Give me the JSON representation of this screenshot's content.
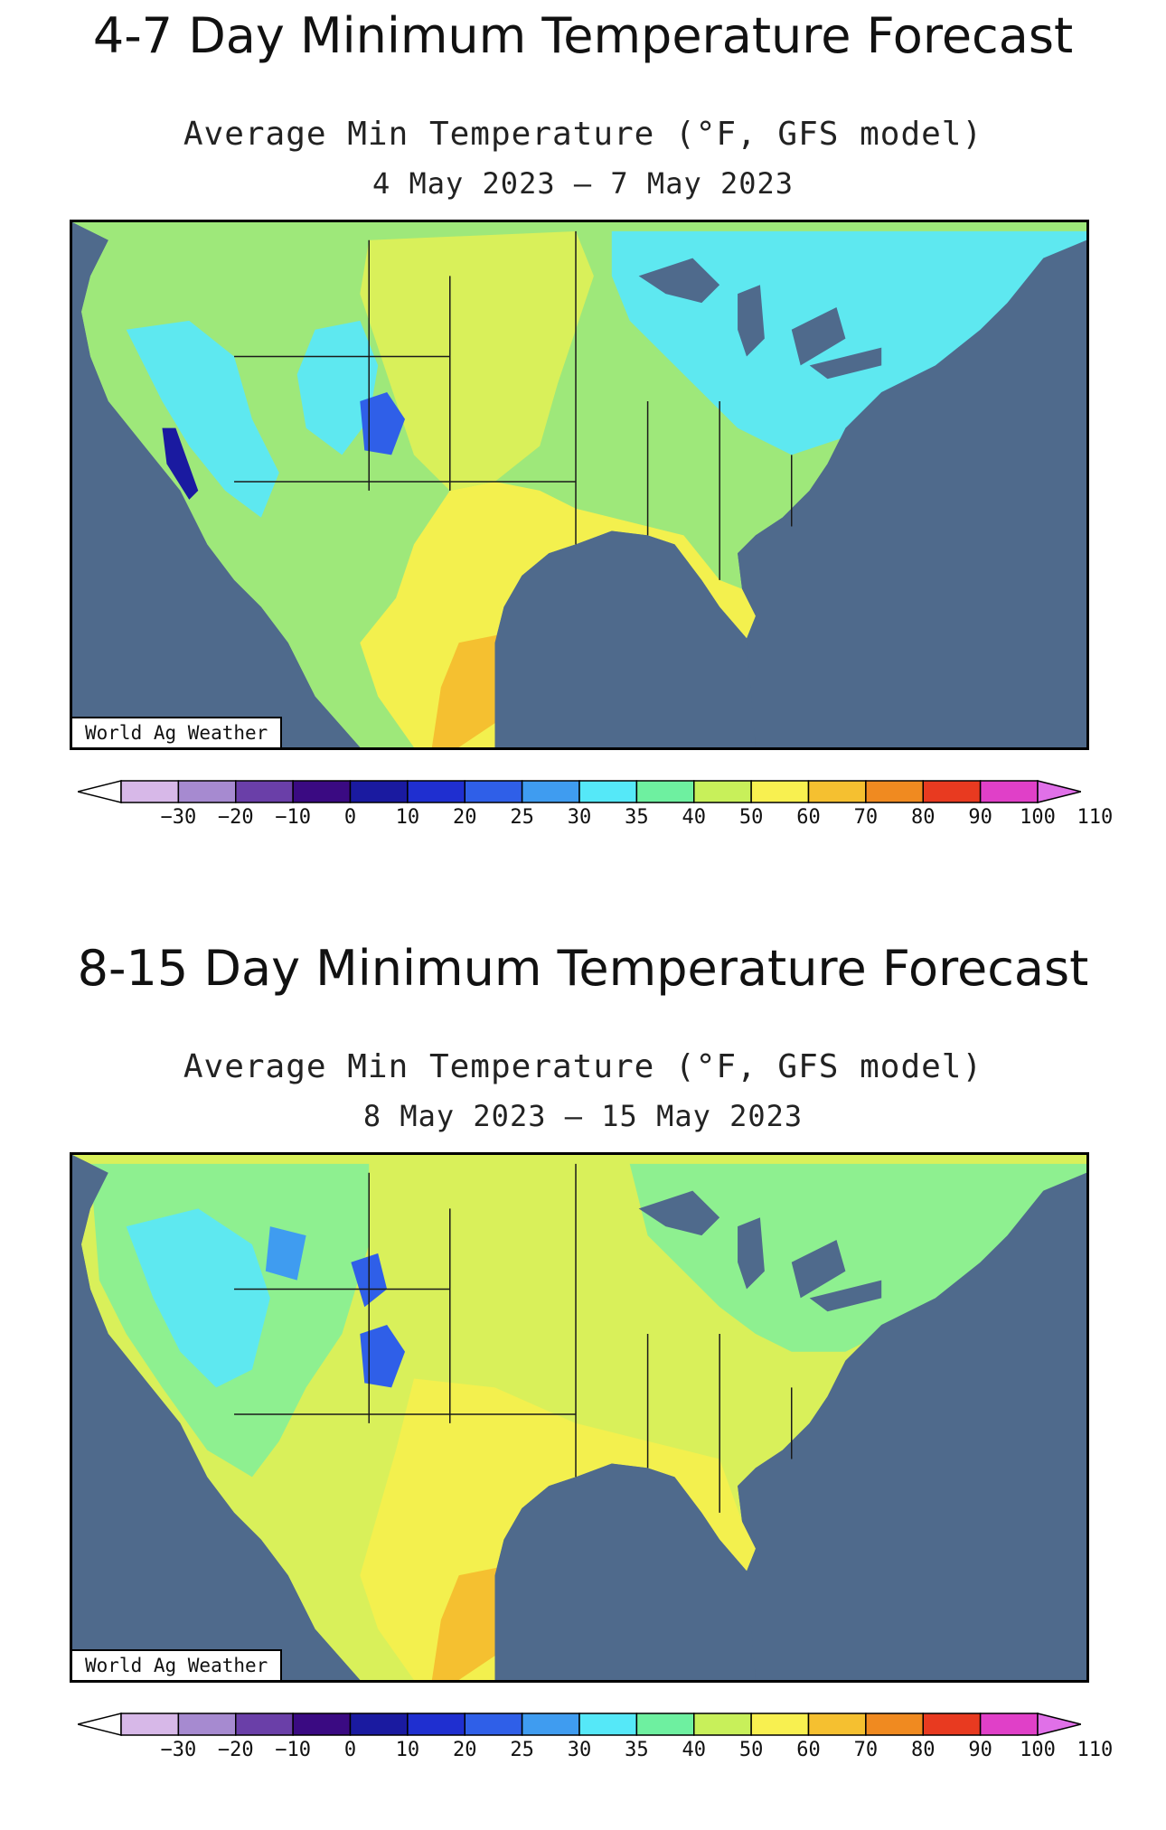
{
  "panels": [
    {
      "title": "4-7 Day Minimum Temperature Forecast",
      "subtitle": "Average Min Temperature (°F, GFS model)",
      "date_range": "4 May 2023 – 7 May 2023",
      "credit": "World Ag Weather"
    },
    {
      "title": "8-15 Day Minimum Temperature Forecast",
      "subtitle": "Average Min Temperature (°F, GFS model)",
      "date_range": "8 May 2023 – 15 May 2023",
      "credit": "World Ag Weather"
    }
  ],
  "colorbar": {
    "labels": [
      "−30",
      "−20",
      "−10",
      "0",
      "10",
      "20",
      "25",
      "30",
      "35",
      "40",
      "50",
      "60",
      "70",
      "80",
      "90",
      "100",
      "110"
    ],
    "colors": [
      "#ffffff",
      "#d7b8e8",
      "#a68ad0",
      "#6a3fa8",
      "#3a0a82",
      "#1a1aa0",
      "#1f2fd0",
      "#2f5fe8",
      "#3f9cf0",
      "#55e8f8",
      "#6ef0a0",
      "#c8f05a",
      "#f8f050",
      "#f5c030",
      "#f08a20",
      "#e83a20",
      "#e040c8",
      "#e070e8"
    ]
  },
  "palette": {
    "ocean": "#4f6a8c",
    "lakes": "#4f6a8c"
  }
}
